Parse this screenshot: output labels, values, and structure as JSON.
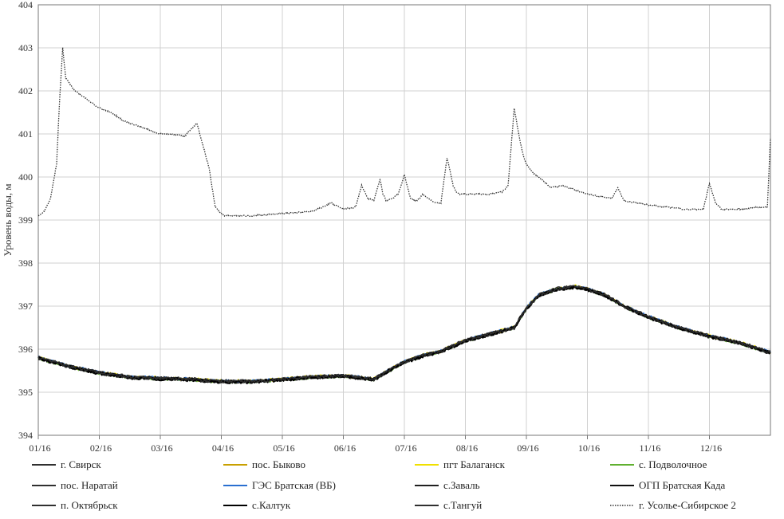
{
  "chart_data": {
    "type": "line",
    "title": "",
    "ylabel": "Уровень воды, м",
    "xlabel": "",
    "ylim": [
      394,
      404
    ],
    "yticks": [
      394,
      395,
      396,
      397,
      398,
      399,
      400,
      401,
      402,
      403,
      404
    ],
    "xlim": [
      0,
      12
    ],
    "xtick_labels": [
      "01/16",
      "02/16",
      "03/16",
      "04/16",
      "05/16",
      "06/16",
      "07/16",
      "08/16",
      "09/16",
      "10/16",
      "11/16",
      "12/16"
    ],
    "grid": true,
    "legend_position": "bottom",
    "series": [
      {
        "name": "г. Свирск",
        "color": "#303030",
        "dash": "solid"
      },
      {
        "name": "пос. Быково",
        "color": "#c8a000",
        "dash": "solid"
      },
      {
        "name": "пгт Балаганск",
        "color": "#f0e000",
        "dash": "solid"
      },
      {
        "name": "с. Подволочное",
        "color": "#60b030",
        "dash": "solid"
      },
      {
        "name": "пос. Наратай",
        "color": "#303030",
        "dash": "solid"
      },
      {
        "name": "ГЭС Братская (ВБ)",
        "color": "#2a6fd0",
        "dash": "solid"
      },
      {
        "name": "с.Заваль",
        "color": "#202020",
        "dash": "solid"
      },
      {
        "name": "ОГП Братская Када",
        "color": "#101010",
        "dash": "solid"
      },
      {
        "name": "п. Октябрьск",
        "color": "#303030",
        "dash": "solid"
      },
      {
        "name": "с.Калтук",
        "color": "#000000",
        "dash": "solid"
      },
      {
        "name": "с.Тангуй",
        "color": "#303030",
        "dash": "solid"
      },
      {
        "name": "г. Усолье-Сибирское 2",
        "color": "#333333",
        "dash": "dotted"
      }
    ],
    "reservoir_level": {
      "x": [
        0,
        0.5,
        1.0,
        1.5,
        2.0,
        2.5,
        3.0,
        3.5,
        4.0,
        4.5,
        5.0,
        5.5,
        5.8,
        6.0,
        6.3,
        6.6,
        7.0,
        7.4,
        7.8,
        8.0,
        8.2,
        8.5,
        8.8,
        9.0,
        9.3,
        9.6,
        10.0,
        10.5,
        11.0,
        11.5,
        12.0
      ],
      "y": [
        395.8,
        395.6,
        395.45,
        395.35,
        395.32,
        395.3,
        395.25,
        395.25,
        395.3,
        395.35,
        395.38,
        395.3,
        395.55,
        395.7,
        395.85,
        395.95,
        396.2,
        396.35,
        396.5,
        396.95,
        397.25,
        397.4,
        397.45,
        397.4,
        397.25,
        397.0,
        396.75,
        396.5,
        396.3,
        396.15,
        395.92
      ]
    },
    "usolye_level": {
      "x": [
        0,
        0.1,
        0.2,
        0.3,
        0.35,
        0.4,
        0.45,
        0.5,
        0.6,
        0.7,
        0.8,
        1.0,
        1.2,
        1.4,
        1.6,
        1.8,
        2.0,
        2.2,
        2.4,
        2.6,
        2.8,
        2.9,
        3.0,
        3.05,
        3.1,
        3.2,
        3.3,
        3.5,
        4.0,
        4.5,
        4.8,
        5.0,
        5.2,
        5.3,
        5.4,
        5.5,
        5.6,
        5.65,
        5.7,
        5.8,
        5.9,
        6.0,
        6.1,
        6.2,
        6.25,
        6.3,
        6.4,
        6.5,
        6.6,
        6.7,
        6.8,
        6.85,
        6.9,
        7.0,
        7.2,
        7.4,
        7.6,
        7.7,
        7.8,
        7.9,
        7.95,
        8.0,
        8.1,
        8.2,
        8.4,
        8.6,
        8.8,
        9.0,
        9.2,
        9.4,
        9.5,
        9.6,
        9.8,
        10.0,
        10.3,
        10.6,
        10.9,
        11.0,
        11.1,
        11.2,
        11.5,
        11.8,
        11.95,
        12.0
      ],
      "y": [
        399.1,
        399.2,
        399.5,
        400.3,
        401.8,
        403.0,
        402.3,
        402.2,
        402.0,
        401.9,
        401.8,
        401.6,
        401.5,
        401.3,
        401.2,
        401.1,
        401.0,
        401.0,
        400.95,
        401.25,
        400.2,
        399.3,
        399.15,
        399.1,
        399.1,
        399.1,
        399.1,
        399.1,
        399.15,
        399.2,
        399.4,
        399.25,
        399.3,
        399.8,
        399.5,
        399.45,
        399.95,
        399.6,
        399.45,
        399.5,
        399.6,
        400.05,
        399.5,
        399.45,
        399.5,
        399.6,
        399.5,
        399.4,
        399.4,
        400.45,
        399.8,
        399.65,
        399.6,
        399.6,
        399.6,
        399.6,
        399.65,
        399.8,
        401.6,
        400.8,
        400.5,
        400.3,
        400.1,
        400.0,
        399.75,
        399.8,
        399.7,
        399.6,
        399.55,
        399.5,
        399.75,
        399.45,
        399.4,
        399.35,
        399.3,
        399.25,
        399.25,
        399.85,
        399.4,
        399.25,
        399.25,
        399.3,
        399.3,
        400.9
      ]
    }
  }
}
